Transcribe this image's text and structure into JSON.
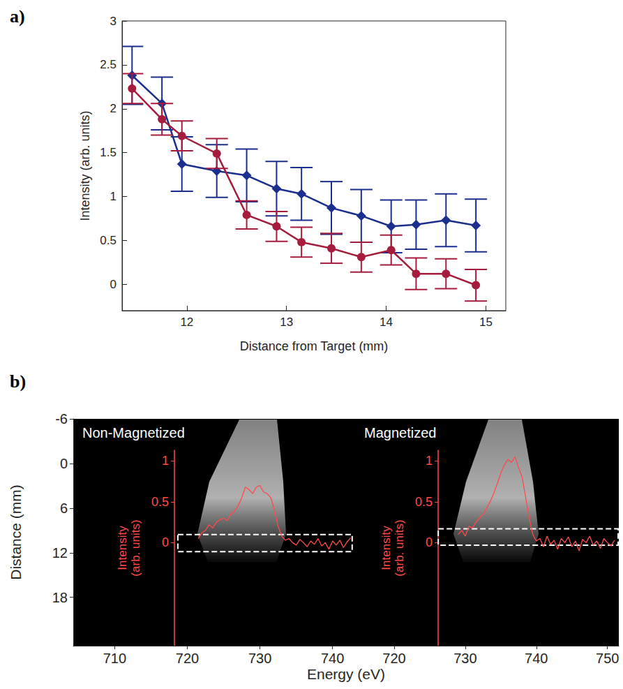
{
  "chart_data": [
    {
      "type": "line",
      "panel_label": "a)",
      "x_label": "Distance from Target (mm)",
      "y_label": "Intensity (arb. units)",
      "xlim": [
        11.35,
        15.2
      ],
      "xticks": [
        12,
        13,
        14,
        15
      ],
      "ylim": [
        -0.3,
        3
      ],
      "yticks": [
        0,
        0.5,
        1,
        1.5,
        2,
        2.5,
        3
      ],
      "grid": false,
      "series": [
        {
          "color": "#1b2f8e",
          "marker": "diamond",
          "x": [
            11.45,
            11.75,
            11.95,
            12.3,
            12.6,
            12.9,
            13.15,
            13.45,
            13.75,
            14.05,
            14.3,
            14.6,
            14.9
          ],
          "values": [
            2.38,
            2.06,
            1.37,
            1.29,
            1.24,
            1.09,
            1.03,
            0.87,
            0.78,
            0.66,
            0.68,
            0.73,
            0.67
          ],
          "errors": [
            0.33,
            0.3,
            0.31,
            0.3,
            0.3,
            0.31,
            0.3,
            0.3,
            0.3,
            0.3,
            0.28,
            0.3,
            0.3
          ]
        },
        {
          "color": "#a51c3c",
          "marker": "circle",
          "x": [
            11.45,
            11.75,
            11.95,
            12.3,
            12.6,
            12.9,
            13.15,
            13.45,
            13.75,
            14.05,
            14.3,
            14.6,
            14.9
          ],
          "values": [
            2.23,
            1.88,
            1.69,
            1.49,
            0.79,
            0.66,
            0.48,
            0.41,
            0.31,
            0.39,
            0.12,
            0.12,
            -0.01
          ],
          "errors": [
            0.17,
            0.18,
            0.17,
            0.17,
            0.16,
            0.17,
            0.17,
            0.17,
            0.17,
            0.17,
            0.18,
            0.17,
            0.18
          ]
        }
      ]
    },
    {
      "type": "image",
      "panel_label": "b)",
      "y_label": "Distance (mm)",
      "x_label": "Energy (eV)",
      "ylim": [
        -6,
        24.5
      ],
      "yticks": [
        -6,
        0,
        6,
        12,
        18
      ],
      "panels": [
        {
          "title": "Non-Magnetized",
          "xlim": [
            704.3,
            743.2
          ],
          "xticks": [
            710,
            720,
            730,
            740
          ],
          "inset": {
            "y_label": "Intensity (arb. units)",
            "ylim": [
              -1.26,
              1.13
            ],
            "yticks": [
              0,
              0.5,
              1
            ],
            "color": "#ff4a4a",
            "x": [
              721.5,
              722,
              722.5,
              723,
              723.5,
              724,
              724.5,
              725,
              725.5,
              726,
              726.5,
              727,
              727.5,
              728,
              728.5,
              729,
              729.5,
              730,
              730.5,
              731,
              731.5,
              732,
              732.5,
              733,
              733.5,
              734,
              734.5,
              735,
              735.5,
              736,
              736.5,
              737,
              737.5,
              738,
              738.5,
              739,
              739.5,
              740,
              740.5,
              741,
              741.5,
              742,
              742.5
            ],
            "values": [
              0.05,
              0.12,
              0.15,
              0.22,
              0.18,
              0.25,
              0.28,
              0.3,
              0.27,
              0.35,
              0.38,
              0.45,
              0.55,
              0.68,
              0.65,
              0.6,
              0.68,
              0.7,
              0.62,
              0.6,
              0.55,
              0.4,
              0.2,
              0.08,
              0.03,
              0.05,
              0.0,
              -0.03,
              0.04,
              0.0,
              -0.05,
              0.02,
              -0.02,
              0.05,
              -0.04,
              0.0,
              -0.08,
              0.02,
              -0.03,
              0.03,
              -0.06,
              0.01,
              0.06
            ],
            "box": {
              "x": [
                718.7,
                742.7
              ],
              "y": [
                -0.11,
                0.1
              ]
            }
          }
        },
        {
          "title": "Magnetized",
          "xlim": [
            714.6,
            751.6
          ],
          "xticks": [
            720,
            730,
            740,
            750
          ],
          "inset": {
            "y_label": "Intensity (arb. units)",
            "ylim": [
              -1.26,
              1.13
            ],
            "yticks": [
              0,
              0.5,
              1
            ],
            "color": "#ff4a4a",
            "x": [
              729,
              729.5,
              730,
              730.5,
              731,
              731.5,
              732,
              732.5,
              733,
              733.5,
              734,
              734.5,
              735,
              735.5,
              736,
              736.5,
              737,
              737.5,
              738,
              738.5,
              739,
              739.5,
              740,
              740.5,
              741,
              741.5,
              742,
              742.5,
              743,
              743.5,
              744,
              744.5,
              745,
              745.5,
              746,
              746.5,
              747,
              747.5,
              748,
              748.5,
              749,
              749.5,
              750,
              750.5,
              751
            ],
            "values": [
              0.1,
              0.15,
              0.08,
              0.2,
              0.18,
              0.25,
              0.3,
              0.35,
              0.42,
              0.5,
              0.6,
              0.72,
              0.85,
              0.95,
              1.02,
              0.98,
              1.05,
              0.92,
              0.8,
              0.55,
              0.3,
              0.1,
              0.02,
              0.05,
              -0.05,
              0.08,
              -0.02,
              0.03,
              -0.08,
              0.05,
              0.0,
              0.07,
              -0.05,
              0.02,
              -0.1,
              0.04,
              0.0,
              0.08,
              -0.03,
              0.02,
              -0.07,
              0.05,
              0.0,
              -0.04,
              0.03
            ],
            "box": {
              "x": [
                726.2,
                751.5
              ],
              "y": [
                -0.03,
                0.17
              ]
            }
          }
        }
      ]
    }
  ]
}
